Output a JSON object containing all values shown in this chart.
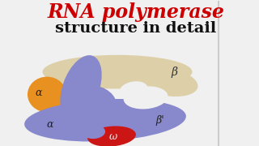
{
  "title_line1": "RNA polymerase",
  "title_line2": "structure in detail",
  "title_color": "#cc0000",
  "title2_color": "#111111",
  "bg_color": "#f0f0f0",
  "subunits": {
    "beta_label": "β",
    "beta_prime_label": "β'",
    "alpha1_label": "α",
    "alpha2_label": "α",
    "omega_label": "ω"
  },
  "colors": {
    "beta_body": "#ddd0a8",
    "beta_prime": "#8888cc",
    "alpha1": "#e89020",
    "alpha2": "#e89020",
    "omega": "#cc1515"
  }
}
